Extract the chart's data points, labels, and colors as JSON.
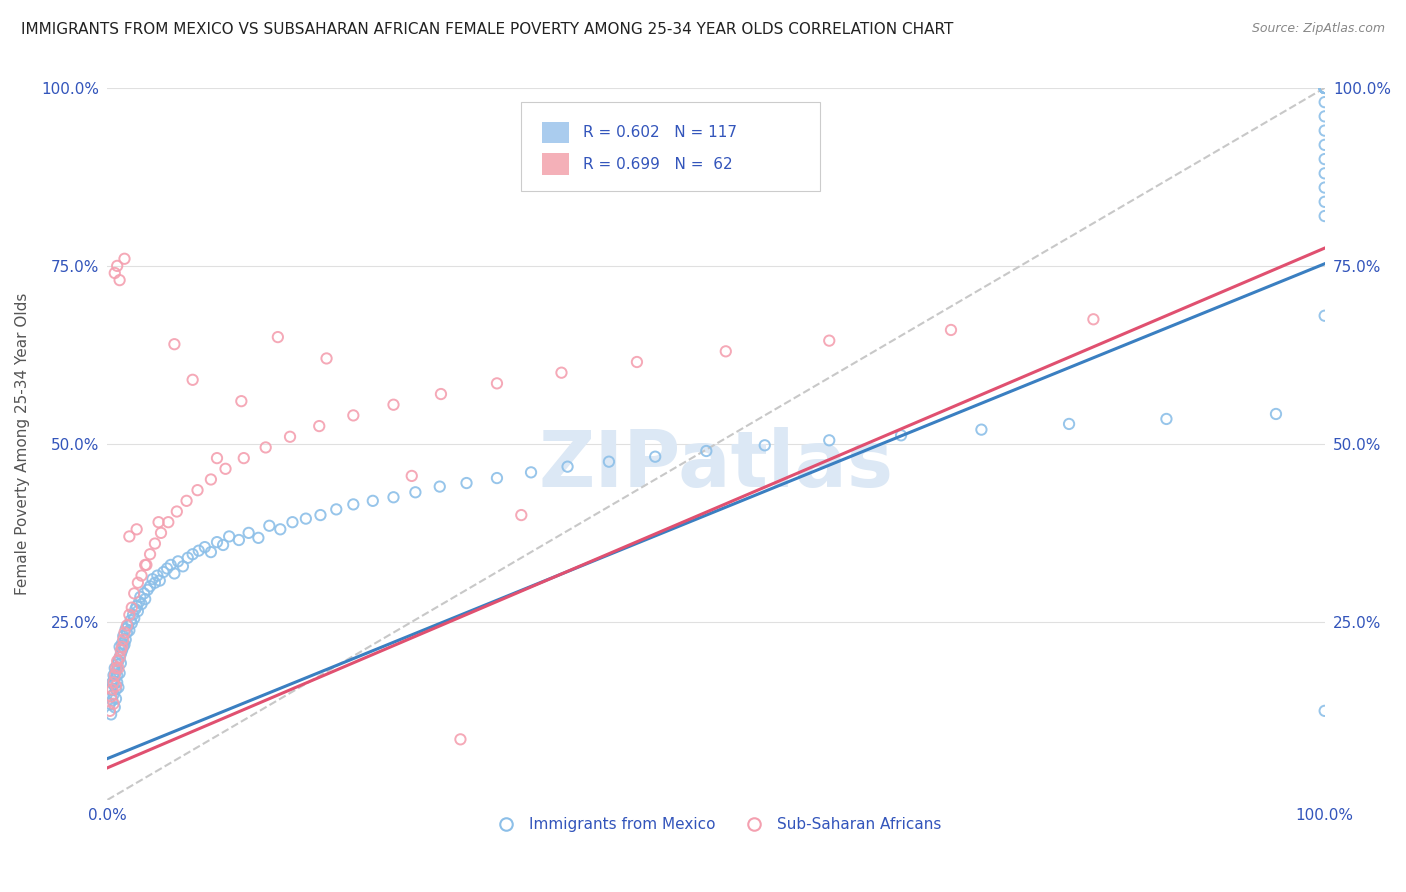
{
  "title": "IMMIGRANTS FROM MEXICO VS SUBSAHARAN AFRICAN FEMALE POVERTY AMONG 25-34 YEAR OLDS CORRELATION CHART",
  "source": "Source: ZipAtlas.com",
  "ylabel": "Female Poverty Among 25-34 Year Olds",
  "legend_blue_R": "R = 0.602",
  "legend_blue_N": "N = 117",
  "legend_pink_R": "R = 0.699",
  "legend_pink_N": "N =  62",
  "legend_label_blue": "Immigrants from Mexico",
  "legend_label_pink": "Sub-Saharan Africans",
  "blue_color": "#8cbfe8",
  "pink_color": "#f4a0b0",
  "blue_line_color": "#3a7fc1",
  "pink_line_color": "#e05070",
  "dashed_line_color": "#c8c8c8",
  "background_color": "#ffffff",
  "grid_color": "#e0e0e0",
  "title_color": "#222222",
  "axis_label_color": "#3355bb",
  "watermark_color": "#dce8f5",
  "xlim": [
    0,
    1
  ],
  "ylim": [
    0,
    1
  ],
  "blue_slope": 0.695,
  "blue_intercept": 0.058,
  "pink_slope": 0.73,
  "pink_intercept": 0.045,
  "blue_scatter_x": [
    0.002,
    0.003,
    0.003,
    0.004,
    0.004,
    0.005,
    0.005,
    0.005,
    0.006,
    0.006,
    0.006,
    0.007,
    0.007,
    0.007,
    0.008,
    0.008,
    0.008,
    0.009,
    0.009,
    0.01,
    0.01,
    0.01,
    0.011,
    0.011,
    0.012,
    0.012,
    0.013,
    0.013,
    0.014,
    0.015,
    0.015,
    0.016,
    0.017,
    0.018,
    0.019,
    0.02,
    0.021,
    0.022,
    0.023,
    0.024,
    0.025,
    0.026,
    0.027,
    0.028,
    0.03,
    0.031,
    0.033,
    0.035,
    0.037,
    0.039,
    0.041,
    0.043,
    0.046,
    0.049,
    0.052,
    0.055,
    0.058,
    0.062,
    0.066,
    0.07,
    0.075,
    0.08,
    0.085,
    0.09,
    0.095,
    0.1,
    0.108,
    0.116,
    0.124,
    0.133,
    0.142,
    0.152,
    0.163,
    0.175,
    0.188,
    0.202,
    0.218,
    0.235,
    0.253,
    0.273,
    0.295,
    0.32,
    0.348,
    0.378,
    0.412,
    0.45,
    0.492,
    0.54,
    0.593,
    0.652,
    0.718,
    0.79,
    0.87,
    0.96,
    1.0,
    1.0,
    1.0,
    1.0,
    1.0,
    1.0,
    1.0,
    1.0,
    1.0,
    1.0,
    1.0,
    1.0,
    1.0,
    1.0,
    1.0,
    1.0,
    1.0,
    1.0,
    1.0,
    1.0,
    1.0,
    1.0,
    1.0
  ],
  "blue_scatter_y": [
    0.135,
    0.155,
    0.12,
    0.165,
    0.14,
    0.175,
    0.148,
    0.162,
    0.185,
    0.13,
    0.17,
    0.155,
    0.18,
    0.142,
    0.19,
    0.165,
    0.175,
    0.195,
    0.158,
    0.2,
    0.178,
    0.215,
    0.192,
    0.205,
    0.21,
    0.22,
    0.215,
    0.23,
    0.218,
    0.225,
    0.24,
    0.235,
    0.245,
    0.238,
    0.252,
    0.248,
    0.26,
    0.255,
    0.268,
    0.272,
    0.265,
    0.278,
    0.285,
    0.275,
    0.29,
    0.282,
    0.295,
    0.3,
    0.31,
    0.305,
    0.315,
    0.308,
    0.32,
    0.325,
    0.33,
    0.318,
    0.335,
    0.328,
    0.34,
    0.345,
    0.35,
    0.355,
    0.348,
    0.362,
    0.358,
    0.37,
    0.365,
    0.375,
    0.368,
    0.385,
    0.38,
    0.39,
    0.395,
    0.4,
    0.408,
    0.415,
    0.42,
    0.425,
    0.432,
    0.44,
    0.445,
    0.452,
    0.46,
    0.468,
    0.475,
    0.482,
    0.49,
    0.498,
    0.505,
    0.512,
    0.52,
    0.528,
    0.535,
    0.542,
    0.68,
    0.82,
    0.84,
    0.86,
    0.88,
    0.9,
    0.92,
    0.94,
    0.96,
    0.98,
    1.0,
    1.0,
    1.0,
    1.0,
    1.0,
    1.0,
    1.0,
    1.0,
    1.0,
    1.0,
    1.0,
    1.0,
    0.125
  ],
  "pink_scatter_x": [
    0.002,
    0.003,
    0.004,
    0.005,
    0.005,
    0.006,
    0.007,
    0.007,
    0.008,
    0.009,
    0.01,
    0.011,
    0.012,
    0.013,
    0.014,
    0.016,
    0.018,
    0.02,
    0.022,
    0.025,
    0.028,
    0.031,
    0.035,
    0.039,
    0.044,
    0.05,
    0.057,
    0.065,
    0.074,
    0.085,
    0.097,
    0.112,
    0.13,
    0.15,
    0.174,
    0.202,
    0.235,
    0.274,
    0.32,
    0.373,
    0.435,
    0.508,
    0.593,
    0.693,
    0.81,
    0.25,
    0.18,
    0.14,
    0.11,
    0.09,
    0.07,
    0.055,
    0.042,
    0.032,
    0.024,
    0.018,
    0.014,
    0.01,
    0.008,
    0.006,
    0.34,
    0.29
  ],
  "pink_scatter_y": [
    0.125,
    0.145,
    0.155,
    0.165,
    0.135,
    0.175,
    0.185,
    0.16,
    0.195,
    0.185,
    0.2,
    0.21,
    0.215,
    0.225,
    0.235,
    0.245,
    0.26,
    0.27,
    0.29,
    0.305,
    0.315,
    0.33,
    0.345,
    0.36,
    0.375,
    0.39,
    0.405,
    0.42,
    0.435,
    0.45,
    0.465,
    0.48,
    0.495,
    0.51,
    0.525,
    0.54,
    0.555,
    0.57,
    0.585,
    0.6,
    0.615,
    0.63,
    0.645,
    0.66,
    0.675,
    0.455,
    0.62,
    0.65,
    0.56,
    0.48,
    0.59,
    0.64,
    0.39,
    0.33,
    0.38,
    0.37,
    0.76,
    0.73,
    0.75,
    0.74,
    0.4,
    0.085
  ]
}
